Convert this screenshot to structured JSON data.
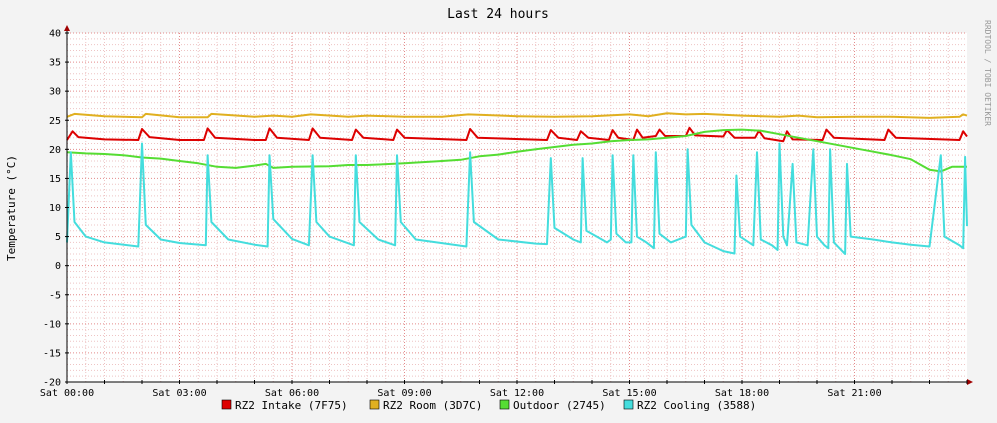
{
  "chart_data": {
    "type": "line",
    "title": "Last 24 hours",
    "ylabel": "Temperature (°C)",
    "xlabel": "",
    "watermark": "RRDTOOL / TOBI OETIKER",
    "x_unit": "hours since Sat 00:00",
    "xlim": [
      0,
      24
    ],
    "ylim": [
      -20,
      40
    ],
    "y_ticks": [
      -20,
      -15,
      -10,
      -5,
      0,
      5,
      10,
      15,
      20,
      25,
      30,
      35,
      40
    ],
    "x_ticks": [
      {
        "x": 0,
        "label": "Sat 00:00"
      },
      {
        "x": 3,
        "label": "Sat 03:00"
      },
      {
        "x": 6,
        "label": "Sat 06:00"
      },
      {
        "x": 9,
        "label": "Sat 09:00"
      },
      {
        "x": 12,
        "label": "Sat 12:00"
      },
      {
        "x": 15,
        "label": "Sat 15:00"
      },
      {
        "x": 18,
        "label": "Sat 18:00"
      },
      {
        "x": 21,
        "label": "Sat 21:00"
      }
    ],
    "grid": true,
    "legend_position": "bottom",
    "series": [
      {
        "name": "RZ2 Intake (7F75)",
        "color": "#dd0000",
        "points": [
          [
            0,
            21.6
          ],
          [
            0.15,
            23.1
          ],
          [
            0.3,
            22.1
          ],
          [
            1,
            21.7
          ],
          [
            1.9,
            21.6
          ],
          [
            2,
            23.5
          ],
          [
            2.2,
            22.1
          ],
          [
            3,
            21.6
          ],
          [
            3.65,
            21.6
          ],
          [
            3.75,
            23.6
          ],
          [
            3.95,
            22
          ],
          [
            5,
            21.6
          ],
          [
            5.3,
            21.6
          ],
          [
            5.4,
            23.6
          ],
          [
            5.6,
            22
          ],
          [
            6.45,
            21.6
          ],
          [
            6.55,
            23.6
          ],
          [
            6.75,
            22
          ],
          [
            7.6,
            21.6
          ],
          [
            7.7,
            23.4
          ],
          [
            7.9,
            22
          ],
          [
            8.7,
            21.6
          ],
          [
            8.8,
            23.4
          ],
          [
            9,
            22
          ],
          [
            10.65,
            21.6
          ],
          [
            10.75,
            23.5
          ],
          [
            10.95,
            22
          ],
          [
            12.8,
            21.6
          ],
          [
            12.9,
            23.3
          ],
          [
            13.1,
            22
          ],
          [
            13.6,
            21.6
          ],
          [
            13.7,
            23.1
          ],
          [
            13.9,
            22
          ],
          [
            14.45,
            21.6
          ],
          [
            14.55,
            23.3
          ],
          [
            14.7,
            22
          ],
          [
            15.1,
            21.6
          ],
          [
            15.2,
            23.4
          ],
          [
            15.35,
            22
          ],
          [
            15.7,
            22.3
          ],
          [
            15.8,
            23.4
          ],
          [
            15.95,
            22.3
          ],
          [
            16.5,
            22.3
          ],
          [
            16.6,
            23.7
          ],
          [
            16.75,
            22.4
          ],
          [
            17.5,
            22.2
          ],
          [
            17.6,
            23.3
          ],
          [
            17.8,
            22
          ],
          [
            18.35,
            22
          ],
          [
            18.45,
            23.2
          ],
          [
            18.6,
            21.9
          ],
          [
            19.1,
            21.4
          ],
          [
            19.2,
            23.1
          ],
          [
            19.35,
            21.7
          ],
          [
            20.15,
            21.6
          ],
          [
            20.25,
            23.4
          ],
          [
            20.45,
            22
          ],
          [
            21.8,
            21.6
          ],
          [
            21.9,
            23.4
          ],
          [
            22.1,
            22
          ],
          [
            23.8,
            21.6
          ],
          [
            23.9,
            23.1
          ],
          [
            24,
            22.2
          ]
        ]
      },
      {
        "name": "RZ2 Room (3D7C)",
        "color": "#e0b020",
        "points": [
          [
            0,
            25.6
          ],
          [
            0.2,
            26.1
          ],
          [
            1,
            25.7
          ],
          [
            2,
            25.5
          ],
          [
            2.1,
            26.1
          ],
          [
            3,
            25.5
          ],
          [
            3.75,
            25.5
          ],
          [
            3.85,
            26.1
          ],
          [
            5,
            25.6
          ],
          [
            5.5,
            25.8
          ],
          [
            6,
            25.6
          ],
          [
            6.5,
            26
          ],
          [
            7.5,
            25.6
          ],
          [
            8,
            25.8
          ],
          [
            9,
            25.6
          ],
          [
            10,
            25.6
          ],
          [
            10.7,
            26
          ],
          [
            12,
            25.7
          ],
          [
            13,
            25.6
          ],
          [
            14,
            25.7
          ],
          [
            15,
            26
          ],
          [
            15.5,
            25.7
          ],
          [
            16,
            26.2
          ],
          [
            16.5,
            26
          ],
          [
            17,
            26.1
          ],
          [
            18,
            25.8
          ],
          [
            19,
            25.6
          ],
          [
            19.5,
            25.8
          ],
          [
            20,
            25.5
          ],
          [
            21,
            25.6
          ],
          [
            22,
            25.6
          ],
          [
            23,
            25.4
          ],
          [
            23.8,
            25.6
          ],
          [
            23.9,
            26
          ],
          [
            24,
            25.8
          ]
        ]
      },
      {
        "name": "Outdoor (2745)",
        "color": "#55dd33",
        "points": [
          [
            0,
            19.5
          ],
          [
            0.5,
            19.3
          ],
          [
            1,
            19.2
          ],
          [
            1.5,
            19
          ],
          [
            2,
            18.6
          ],
          [
            2.5,
            18.4
          ],
          [
            3,
            18
          ],
          [
            3.5,
            17.6
          ],
          [
            4,
            17
          ],
          [
            4.5,
            16.8
          ],
          [
            5,
            17.2
          ],
          [
            5.3,
            17.5
          ],
          [
            5.5,
            16.8
          ],
          [
            6,
            17
          ],
          [
            7,
            17.1
          ],
          [
            7.5,
            17.3
          ],
          [
            8,
            17.3
          ],
          [
            9,
            17.6
          ],
          [
            10,
            18
          ],
          [
            10.5,
            18.2
          ],
          [
            11,
            18.8
          ],
          [
            11.5,
            19.1
          ],
          [
            12,
            19.6
          ],
          [
            12.5,
            20
          ],
          [
            13,
            20.4
          ],
          [
            13.5,
            20.8
          ],
          [
            14,
            21
          ],
          [
            14.5,
            21.4
          ],
          [
            15,
            21.6
          ],
          [
            15.5,
            21.7
          ],
          [
            16,
            22
          ],
          [
            16.5,
            22.3
          ],
          [
            17,
            23
          ],
          [
            17.5,
            23.3
          ],
          [
            18,
            23.4
          ],
          [
            18.5,
            23.2
          ],
          [
            19,
            22.6
          ],
          [
            19.5,
            22
          ],
          [
            20,
            21.4
          ],
          [
            20.5,
            20.8
          ],
          [
            21,
            20.2
          ],
          [
            21.5,
            19.6
          ],
          [
            22,
            19
          ],
          [
            22.5,
            18.3
          ],
          [
            23,
            16.5
          ],
          [
            23.3,
            16.2
          ],
          [
            23.6,
            17
          ],
          [
            24,
            17
          ]
        ]
      },
      {
        "name": "RZ2 Cooling (3588)",
        "color": "#44dddd",
        "points": [
          [
            0,
            4
          ],
          [
            0.1,
            19.5
          ],
          [
            0.2,
            7.5
          ],
          [
            0.5,
            5
          ],
          [
            1,
            4
          ],
          [
            1.9,
            3.3
          ],
          [
            2,
            21
          ],
          [
            2.1,
            7
          ],
          [
            2.5,
            4.5
          ],
          [
            3,
            3.9
          ],
          [
            3.7,
            3.5
          ],
          [
            3.75,
            19
          ],
          [
            3.85,
            7.5
          ],
          [
            4.3,
            4.5
          ],
          [
            5,
            3.6
          ],
          [
            5.35,
            3.3
          ],
          [
            5.4,
            19
          ],
          [
            5.5,
            8
          ],
          [
            6,
            4.6
          ],
          [
            6.45,
            3.5
          ],
          [
            6.55,
            19
          ],
          [
            6.65,
            7.5
          ],
          [
            7,
            5
          ],
          [
            7.65,
            3.5
          ],
          [
            7.7,
            19
          ],
          [
            7.8,
            7.5
          ],
          [
            8.3,
            4.5
          ],
          [
            8.75,
            3.5
          ],
          [
            8.8,
            19
          ],
          [
            8.9,
            7.5
          ],
          [
            9.3,
            4.5
          ],
          [
            10.65,
            3.3
          ],
          [
            10.75,
            19.5
          ],
          [
            10.85,
            7.5
          ],
          [
            11.5,
            4.5
          ],
          [
            12.5,
            3.8
          ],
          [
            12.8,
            3.7
          ],
          [
            12.9,
            18.5
          ],
          [
            13,
            6.5
          ],
          [
            13.5,
            4.5
          ],
          [
            13.7,
            4
          ],
          [
            13.75,
            18.5
          ],
          [
            13.85,
            6
          ],
          [
            14.4,
            4
          ],
          [
            14.5,
            4.5
          ],
          [
            14.55,
            19
          ],
          [
            14.65,
            5.5
          ],
          [
            14.9,
            4
          ],
          [
            15.05,
            4
          ],
          [
            15.1,
            19
          ],
          [
            15.2,
            5
          ],
          [
            15.45,
            4
          ],
          [
            15.65,
            3
          ],
          [
            15.7,
            19.5
          ],
          [
            15.8,
            5.5
          ],
          [
            16.1,
            4
          ],
          [
            16.5,
            5
          ],
          [
            16.55,
            20
          ],
          [
            16.65,
            7
          ],
          [
            17,
            4
          ],
          [
            17.5,
            2.5
          ],
          [
            17.8,
            2.1
          ],
          [
            17.85,
            15.5
          ],
          [
            17.95,
            5
          ],
          [
            18.3,
            3.5
          ],
          [
            18.4,
            19.5
          ],
          [
            18.5,
            4.5
          ],
          [
            18.8,
            3.5
          ],
          [
            18.95,
            2.7
          ],
          [
            19,
            21
          ],
          [
            19.1,
            5
          ],
          [
            19.2,
            3.5
          ],
          [
            19.35,
            17.5
          ],
          [
            19.45,
            4
          ],
          [
            19.75,
            3.5
          ],
          [
            19.9,
            20
          ],
          [
            20,
            5
          ],
          [
            20.2,
            3.5
          ],
          [
            20.3,
            3
          ],
          [
            20.35,
            20
          ],
          [
            20.45,
            4
          ],
          [
            20.75,
            2
          ],
          [
            20.8,
            17.5
          ],
          [
            20.9,
            5
          ],
          [
            21.5,
            4.5
          ],
          [
            22,
            4
          ],
          [
            22.5,
            3.6
          ],
          [
            23,
            3.3
          ],
          [
            23.3,
            19
          ],
          [
            23.4,
            5
          ],
          [
            23.8,
            3.5
          ],
          [
            23.9,
            3
          ],
          [
            23.95,
            18.7
          ],
          [
            24,
            6.8
          ]
        ]
      }
    ]
  }
}
